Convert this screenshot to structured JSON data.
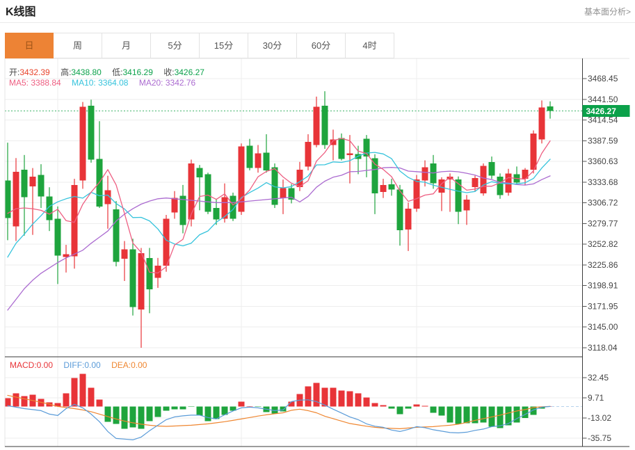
{
  "header": {
    "title": "K线图",
    "link": "基本面分析>"
  },
  "tabs": {
    "items": [
      "日",
      "周",
      "月",
      "5分",
      "15分",
      "30分",
      "60分",
      "4时"
    ],
    "active_index": 0
  },
  "legend": {
    "ohlc": [
      {
        "label": "开:",
        "value": "3432.39",
        "color": "#e8432a"
      },
      {
        "label": "高:",
        "value": "3438.80",
        "color": "#0ca24b"
      },
      {
        "label": "低:",
        "value": "3416.29",
        "color": "#0ca24b"
      },
      {
        "label": "收:",
        "value": "3426.27",
        "color": "#0ca24b"
      }
    ],
    "ma": [
      {
        "label": "MA5: ",
        "value": "3388.84",
        "color": "#ee5f82"
      },
      {
        "label": "MA10: ",
        "value": "3364.08",
        "color": "#35c3dc"
      },
      {
        "label": "MA20: ",
        "value": "3342.76",
        "color": "#ab6bd0"
      }
    ],
    "macd": [
      {
        "label": "MACD:",
        "value": "0.00",
        "color": "#e83438"
      },
      {
        "label": "DIFF:",
        "value": "0.00",
        "color": "#5a9bd8"
      },
      {
        "label": "DEA:",
        "value": "0.00",
        "color": "#ef8630"
      }
    ]
  },
  "colors": {
    "up": "#e83438",
    "down": "#1ea43d",
    "ma5": "#ee5f82",
    "ma10": "#35c3dc",
    "ma20": "#ab6bd0",
    "diff": "#5a9bd8",
    "dea": "#ef8630",
    "price_line": "#3db368",
    "price_tag_bg": "#0ba14a",
    "price_tag_text": "#ffffff",
    "grid": "#ededed",
    "axis": "#3a3a3a",
    "border_light": "#e4e4e4",
    "label": "#444444",
    "tail_dash": "#b5d2ec"
  },
  "chart_data": {
    "type": "candlestick_with_macd",
    "period": "日",
    "current_price": {
      "value": 3426.27,
      "label": "3426.27"
    },
    "y_axis": {
      "ticks": [
        3468.45,
        3441.5,
        3414.54,
        3387.59,
        3360.63,
        3333.68,
        3306.72,
        3279.77,
        3252.82,
        3225.86,
        3198.91,
        3171.95,
        3145.0,
        3118.04
      ]
    },
    "macd_axis": {
      "ticks": [
        32.45,
        9.71,
        -13.02,
        -35.75
      ]
    },
    "x_gridline_indices": [
      6,
      28,
      49
    ],
    "ohlc_order": [
      "open",
      "high",
      "low",
      "close"
    ],
    "candles": [
      [
        3336,
        3385,
        3258,
        3287
      ],
      [
        3276,
        3365,
        3257,
        3347
      ],
      [
        3350,
        3369,
        3264,
        3314
      ],
      [
        3328,
        3352,
        3265,
        3341
      ],
      [
        3343,
        3357,
        3300,
        3315
      ],
      [
        3315,
        3327,
        3270,
        3284
      ],
      [
        3286,
        3302,
        3201,
        3238
      ],
      [
        3236,
        3252,
        3216,
        3240
      ],
      [
        3237,
        3338,
        3221,
        3330
      ],
      [
        3336,
        3438,
        3325,
        3432
      ],
      [
        3433,
        3441,
        3359,
        3363
      ],
      [
        3364,
        3413,
        3300,
        3302
      ],
      [
        3305,
        3342,
        3273,
        3323
      ],
      [
        3298,
        3309,
        3224,
        3230
      ],
      [
        3234,
        3257,
        3205,
        3246
      ],
      [
        3246,
        3260,
        3160,
        3171
      ],
      [
        3168,
        3248,
        3118,
        3241
      ],
      [
        3235,
        3248,
        3163,
        3194
      ],
      [
        3209,
        3235,
        3196,
        3225
      ],
      [
        3225,
        3291,
        3217,
        3286
      ],
      [
        3294,
        3322,
        3286,
        3313
      ],
      [
        3316,
        3330,
        3267,
        3278
      ],
      [
        3285,
        3363,
        3276,
        3358
      ],
      [
        3352,
        3356,
        3297,
        3340
      ],
      [
        3344,
        3346,
        3292,
        3295
      ],
      [
        3300,
        3312,
        3278,
        3285
      ],
      [
        3286,
        3332,
        3281,
        3314
      ],
      [
        3316,
        3320,
        3283,
        3286
      ],
      [
        3295,
        3384,
        3291,
        3380
      ],
      [
        3381,
        3390,
        3349,
        3352
      ],
      [
        3352,
        3382,
        3346,
        3371
      ],
      [
        3372,
        3396,
        3346,
        3349
      ],
      [
        3353,
        3358,
        3300,
        3304
      ],
      [
        3313,
        3337,
        3292,
        3326
      ],
      [
        3326,
        3331,
        3306,
        3311
      ],
      [
        3327,
        3360,
        3322,
        3350
      ],
      [
        3354,
        3396,
        3349,
        3386
      ],
      [
        3382,
        3445,
        3379,
        3432
      ],
      [
        3433,
        3452,
        3377,
        3382
      ],
      [
        3382,
        3402,
        3362,
        3389
      ],
      [
        3391,
        3397,
        3362,
        3364
      ],
      [
        3369,
        3395,
        3332,
        3371
      ],
      [
        3370,
        3381,
        3344,
        3364
      ],
      [
        3390,
        3395,
        3340,
        3367
      ],
      [
        3365,
        3370,
        3292,
        3319
      ],
      [
        3321,
        3338,
        3313,
        3330
      ],
      [
        3331,
        3338,
        3316,
        3324
      ],
      [
        3324,
        3330,
        3251,
        3271
      ],
      [
        3272,
        3307,
        3244,
        3299
      ],
      [
        3299,
        3343,
        3295,
        3337
      ],
      [
        3336,
        3362,
        3328,
        3353
      ],
      [
        3358,
        3369,
        3325,
        3332
      ],
      [
        3320,
        3340,
        3296,
        3337
      ],
      [
        3337,
        3345,
        3295,
        3341
      ],
      [
        3337,
        3341,
        3279,
        3295
      ],
      [
        3297,
        3317,
        3278,
        3311
      ],
      [
        3327,
        3342,
        3322,
        3339
      ],
      [
        3319,
        3358,
        3316,
        3355
      ],
      [
        3360,
        3367,
        3338,
        3342
      ],
      [
        3341,
        3345,
        3312,
        3317
      ],
      [
        3320,
        3351,
        3316,
        3345
      ],
      [
        3344,
        3354,
        3331,
        3333
      ],
      [
        3338,
        3352,
        3330,
        3350
      ],
      [
        3350,
        3401,
        3345,
        3397
      ],
      [
        3389,
        3440,
        3384,
        3431
      ],
      [
        3432.39,
        3438.8,
        3416.29,
        3426.27
      ]
    ],
    "ma_series": [
      {
        "name": "MA5",
        "window": 5,
        "color_key": "ma5",
        "lead_in": [
          3293,
          3299,
          3300,
          3299,
          3297,
          3292
        ]
      },
      {
        "name": "MA10",
        "window": 10,
        "color_key": "ma10",
        "lead_in": [
          3236,
          3254,
          3266,
          3279,
          3290,
          3302,
          3308,
          3312,
          3315
        ]
      },
      {
        "name": "MA20",
        "window": 20,
        "color_key": "ma20",
        "lead_in": [
          3167,
          3181,
          3195,
          3206,
          3215,
          3222,
          3229,
          3235,
          3240,
          3245,
          3254,
          3262,
          3270,
          3283,
          3292,
          3299,
          3305,
          3309,
          3312,
          3313,
          3312,
          3311,
          3310,
          3309,
          3308,
          3307,
          3307,
          3307,
          3308,
          3309,
          3310,
          3311,
          3312,
          3313,
          3314
        ]
      }
    ],
    "macd_histogram": [
      9.4,
      14.9,
      11.8,
      13.3,
      8.6,
      4.7,
      3.9,
      14.9,
      32.1,
      36.8,
      21.2,
      7.8,
      -17.2,
      -19.6,
      -25.1,
      -23.5,
      -25.1,
      -16.5,
      -11.8,
      -4.7,
      -3.1,
      -3.1,
      -0.5,
      -10.2,
      -16.5,
      -14.1,
      -9.4,
      -4.7,
      5.5,
      0.5,
      -0.5,
      -6.3,
      -7.8,
      -5.5,
      5.5,
      14.1,
      22.7,
      26.6,
      21.2,
      21.2,
      18,
      17.2,
      14.9,
      10.2,
      3.9,
      1.6,
      -2.4,
      -8.6,
      -2.4,
      2.4,
      0.8,
      -7.1,
      -10.2,
      -18,
      -19.6,
      -18.8,
      -18.8,
      -18,
      -22.7,
      -24.3,
      -21.2,
      -18,
      -13,
      -9.5,
      -2.5,
      0
    ],
    "diff_line": [
      0.8,
      -0.8,
      -2.4,
      -3.5,
      -4.7,
      -8.6,
      -10.2,
      -2.4,
      2.4,
      -1.6,
      -8.6,
      -17.2,
      -28.2,
      -36.1,
      -36.8,
      -37.6,
      -34.5,
      -27.4,
      -21.2,
      -14.9,
      -11.8,
      -10.6,
      -9.8,
      -9.8,
      -12.5,
      -14.1,
      -9.4,
      -5.1,
      -1.6,
      -0.8,
      -1.6,
      -3.1,
      -4.7,
      -3.9,
      5.5,
      7.1,
      7.5,
      5.5,
      1.6,
      -3.1,
      -7.4,
      -11.8,
      -14.9,
      -19.6,
      -22.3,
      -23.5,
      -26.6,
      -28.2,
      -25.9,
      -22.7,
      -23.9,
      -26.3,
      -27.8,
      -29.4,
      -29.8,
      -29,
      -27,
      -25.5,
      -22.7,
      -21.9,
      -19.2,
      -13.7,
      -9,
      -3.9,
      -0.8,
      0
    ],
    "dea_line": [
      12.5,
      10.6,
      8.6,
      6.7,
      4.7,
      2.7,
      0,
      -1.2,
      -2.4,
      -3.9,
      -5.9,
      -8.6,
      -11.4,
      -14.1,
      -16.5,
      -18.4,
      -20,
      -21.2,
      -22,
      -22.4,
      -22,
      -21.6,
      -21.2,
      -20.4,
      -19.6,
      -18.4,
      -17.2,
      -15.7,
      -14.1,
      -12.5,
      -10.8,
      -9.4,
      -8.2,
      -7.1,
      -4.3,
      -3.1,
      -4.7,
      -7.1,
      -11,
      -13.7,
      -16.5,
      -19.2,
      -20.8,
      -22.3,
      -23.5,
      -24.3,
      -24.7,
      -25.1,
      -24.3,
      -23.5,
      -23.1,
      -22.7,
      -21.9,
      -21.2,
      -20,
      -18,
      -15.7,
      -13.7,
      -11.8,
      -9.8,
      -7.4,
      -5.1,
      -3.5,
      -1.2,
      -0.3,
      0
    ]
  }
}
